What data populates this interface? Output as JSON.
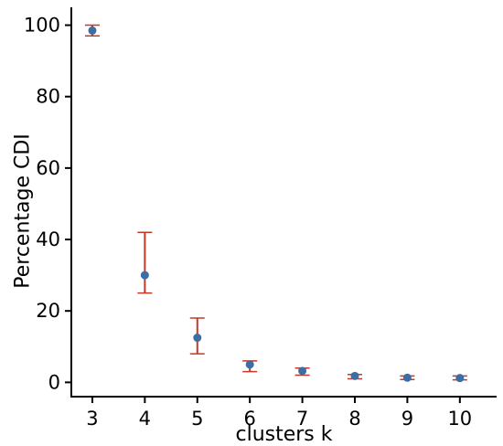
{
  "chart_data": {
    "type": "scatter",
    "title": "",
    "xlabel": "clusters k",
    "ylabel": "Percentage CDI",
    "xlim": [
      2.6,
      10.7
    ],
    "ylim": [
      -4,
      105
    ],
    "xticks": [
      3,
      4,
      5,
      6,
      7,
      8,
      9,
      10
    ],
    "yticks": [
      0,
      20,
      40,
      60,
      80,
      100
    ],
    "grid": false,
    "legend": "none",
    "marker_color": "#3a6ea5",
    "errorbar_color": "#c0392b",
    "points": [
      {
        "x": 3,
        "y": 98.5,
        "low": 97.0,
        "high": 100.0
      },
      {
        "x": 4,
        "y": 30.0,
        "low": 25.0,
        "high": 42.0
      },
      {
        "x": 5,
        "y": 12.5,
        "low": 8.0,
        "high": 18.0
      },
      {
        "x": 6,
        "y": 5.0,
        "low": 3.0,
        "high": 6.0
      },
      {
        "x": 7,
        "y": 3.2,
        "low": 2.0,
        "high": 4.0
      },
      {
        "x": 8,
        "y": 1.8,
        "low": 1.0,
        "high": 2.2
      },
      {
        "x": 9,
        "y": 1.3,
        "low": 0.8,
        "high": 1.8
      },
      {
        "x": 10,
        "y": 1.2,
        "low": 0.7,
        "high": 1.8
      }
    ]
  }
}
